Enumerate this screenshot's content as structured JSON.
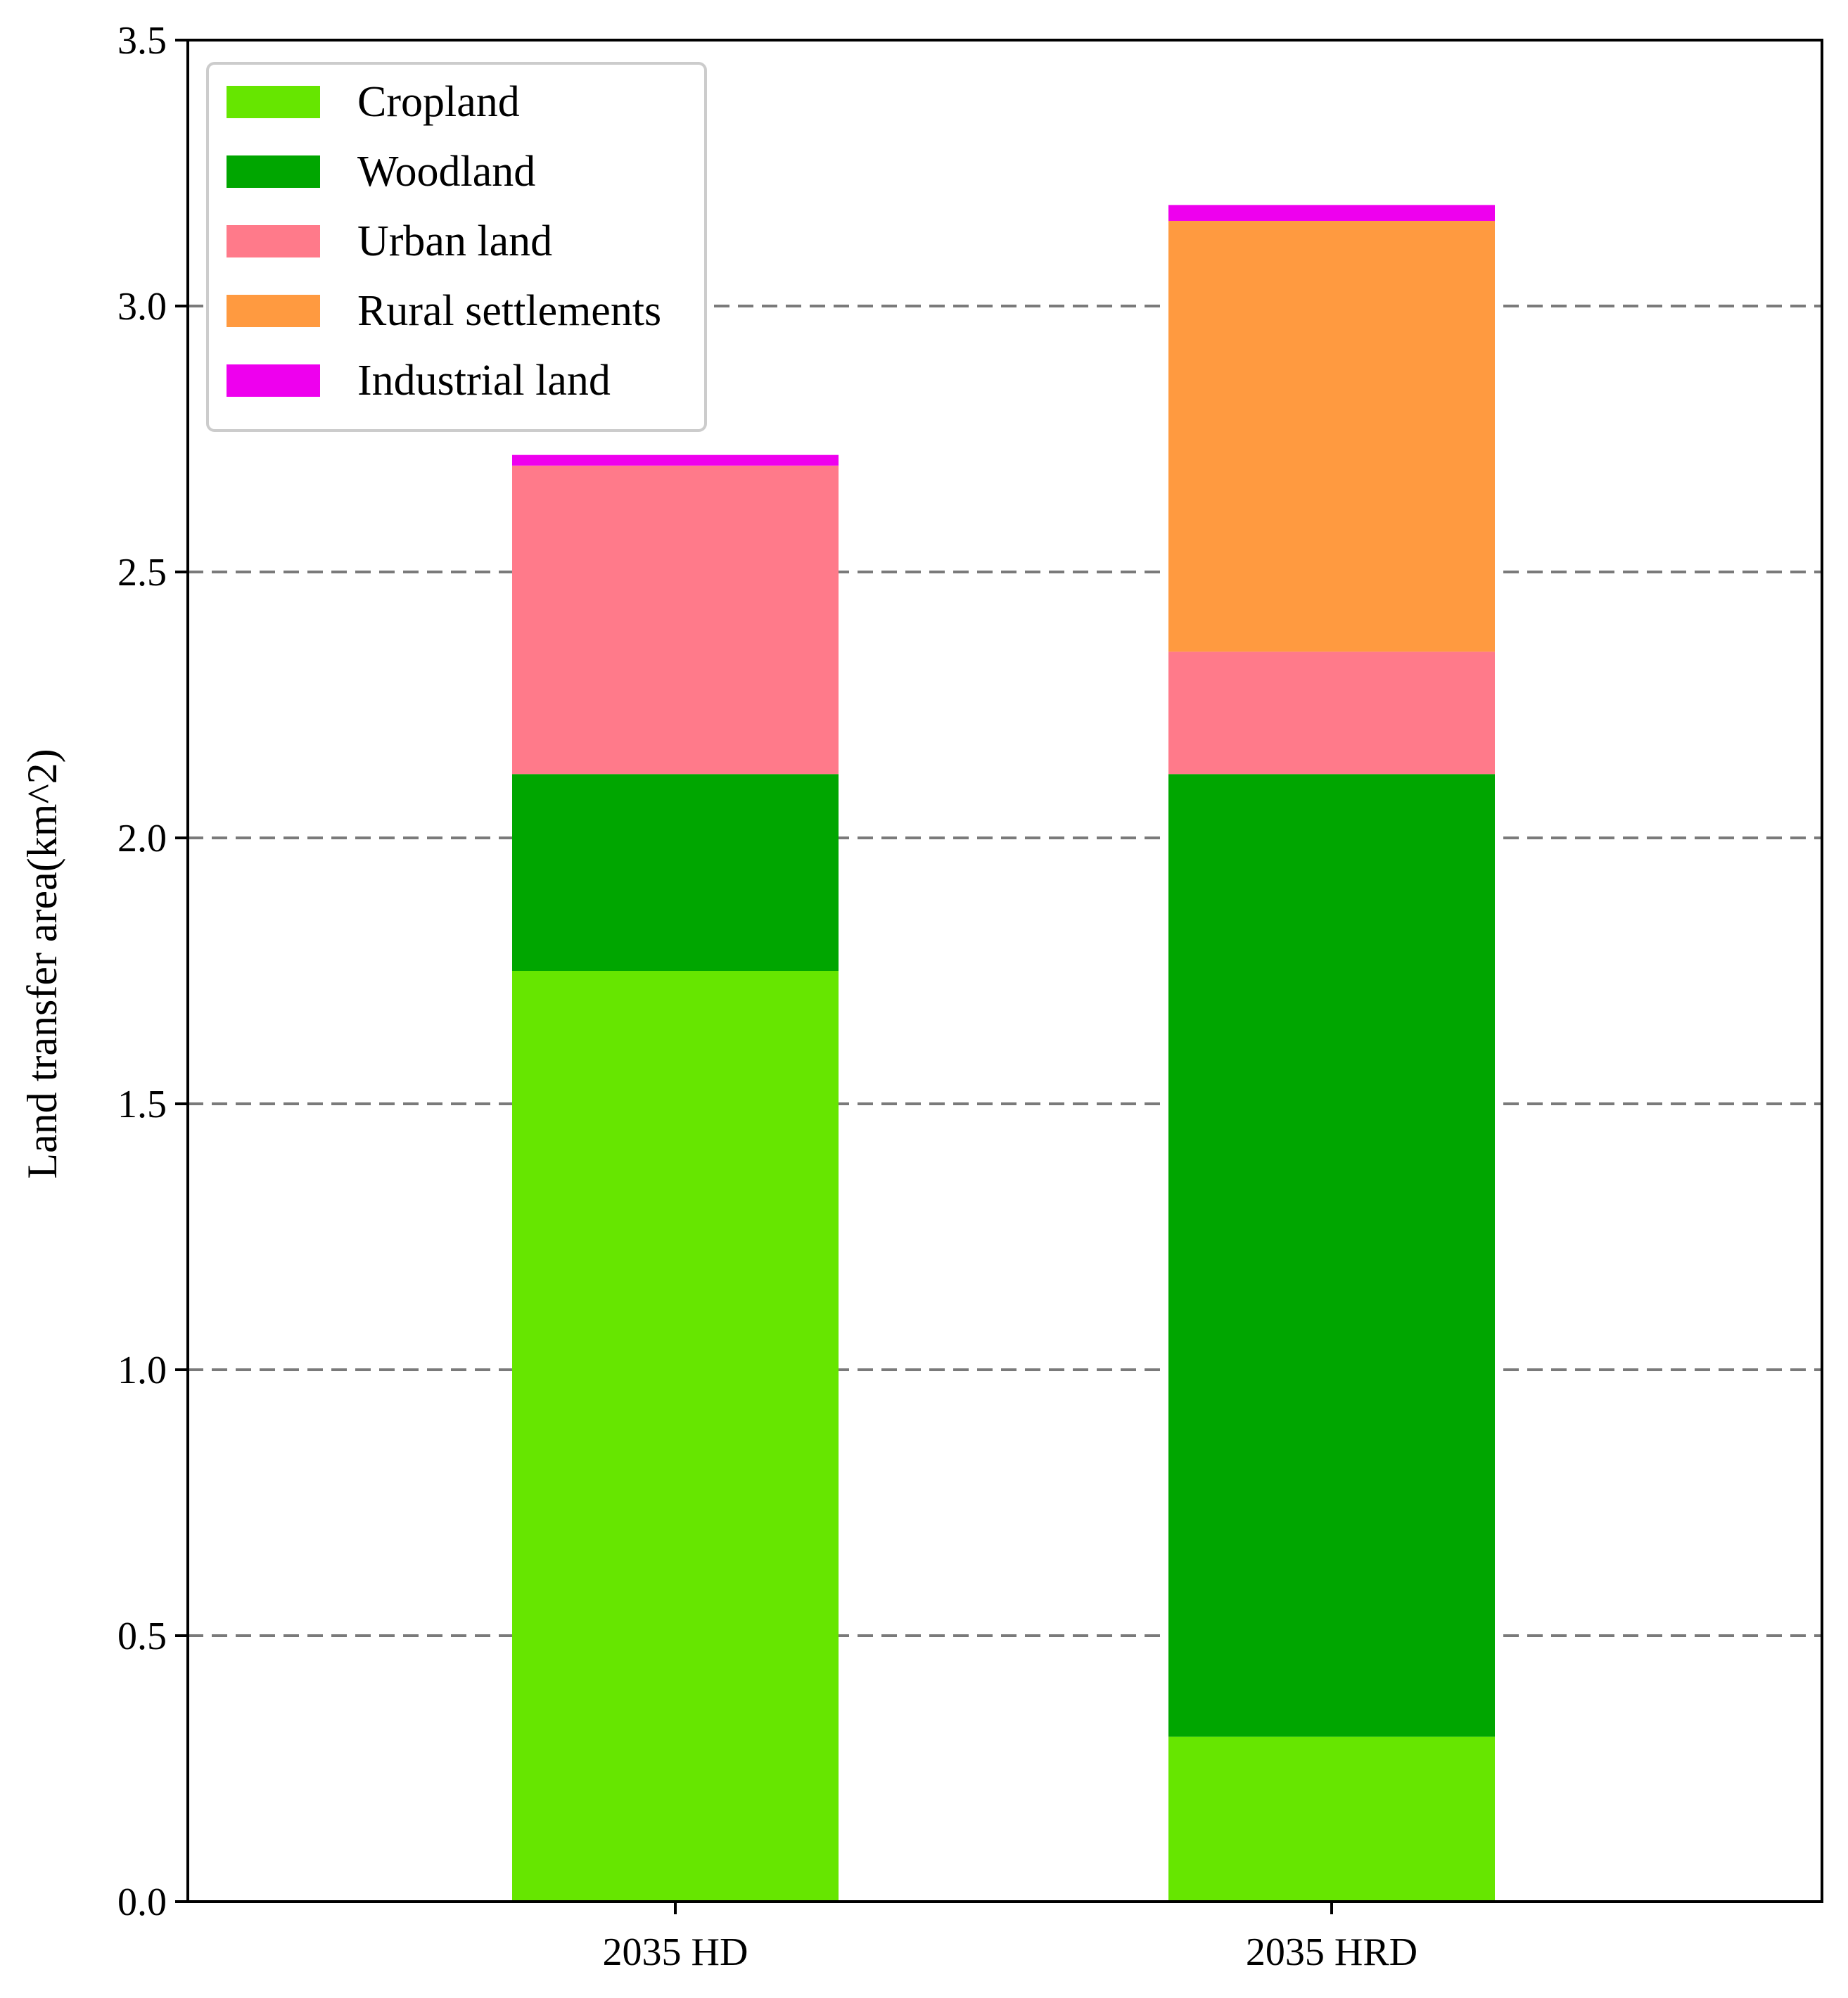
{
  "chart_data": {
    "type": "bar",
    "stacked": true,
    "categories": [
      "2035 HD",
      "2035 HRD"
    ],
    "series": [
      {
        "name": "Cropland",
        "color": "#66e600",
        "values": [
          1.75,
          0.31
        ]
      },
      {
        "name": "Woodland",
        "color": "#00a600",
        "values": [
          0.37,
          1.81
        ]
      },
      {
        "name": "Urban land",
        "color": "#ff7a8a",
        "values": [
          0.58,
          0.23
        ]
      },
      {
        "name": "Rural settlements",
        "color": "#ff9a40",
        "values": [
          0.0,
          0.81
        ]
      },
      {
        "name": "Industrial land",
        "color": "#ee00ee",
        "values": [
          0.02,
          0.03
        ]
      }
    ],
    "xlabel": "",
    "ylabel": "Land transfer area(km^2)",
    "ylim": [
      0,
      3.5
    ],
    "yticks": [
      "0.0",
      "0.5",
      "1.0",
      "1.5",
      "2.0",
      "2.5",
      "3.0",
      "3.5"
    ],
    "grid": "horizontal dashed",
    "legend_position": "top-left"
  }
}
